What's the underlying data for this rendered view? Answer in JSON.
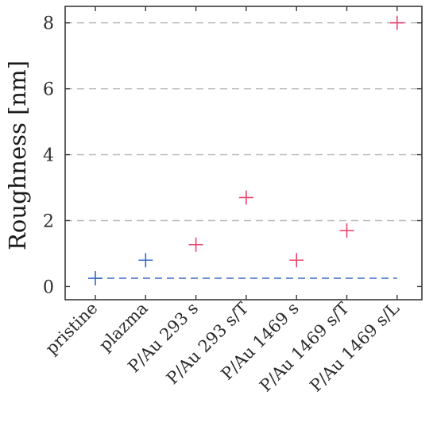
{
  "chart_data": {
    "type": "scatter",
    "title": "",
    "xlabel": "",
    "ylabel": "Roughness [nm]",
    "categories": [
      "pristine",
      "plazma",
      "P/Au 293 s",
      "P/Au 293 s/T",
      "P/Au 1469 s",
      "P/Au 1469 s/T",
      "P/Au 1469 s/L"
    ],
    "series": [
      {
        "color": "#3a68c4",
        "marker": "plus",
        "values": [
          0.25,
          0.8,
          null,
          null,
          null,
          null,
          null
        ]
      },
      {
        "color": "#e8476e",
        "marker": "plus",
        "values": [
          null,
          null,
          1.27,
          2.7,
          0.8,
          1.7,
          8.0
        ]
      }
    ],
    "reference_line": {
      "value": 0.25,
      "color": "#3a68c4",
      "style": "dashed"
    },
    "ylim": [
      -0.4,
      8.5
    ],
    "yticks": [
      0,
      2,
      4,
      6,
      8
    ],
    "grid": "horizontal dashed",
    "gridcolor": "#b8b8b8"
  }
}
